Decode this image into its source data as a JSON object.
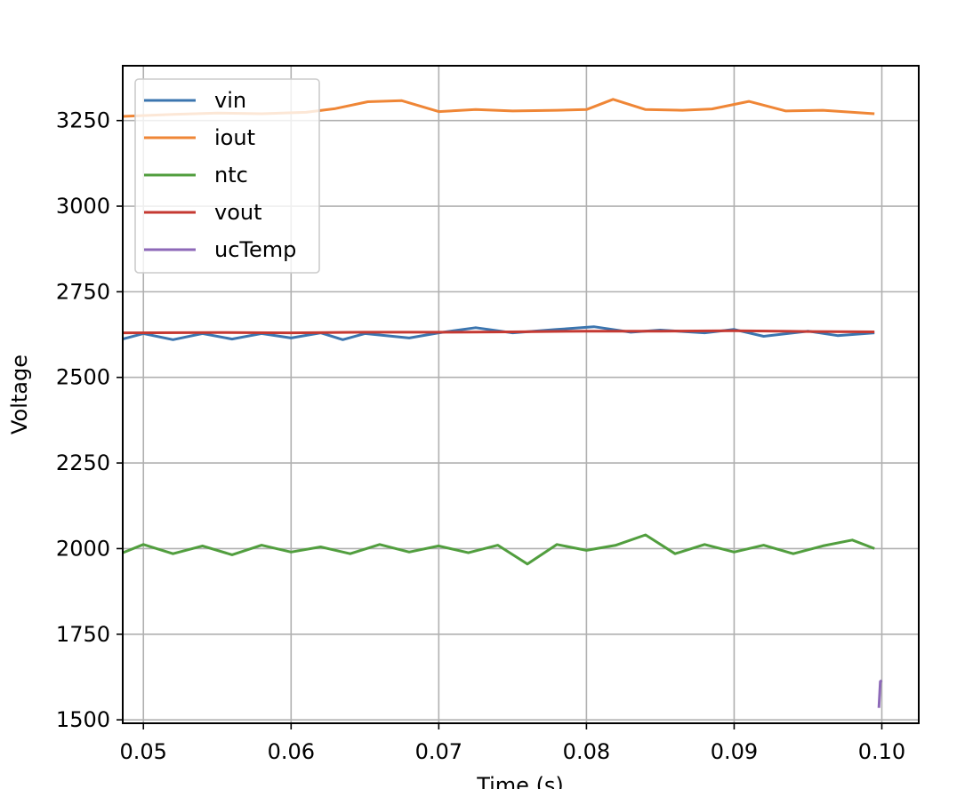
{
  "chart_data": {
    "type": "line",
    "title": "",
    "xlabel": "Time (s)",
    "ylabel": "Voltage",
    "xlim": [
      0.0486,
      0.1025
    ],
    "ylim": [
      1490,
      3410
    ],
    "xticks": [
      0.05,
      0.06,
      0.07,
      0.08,
      0.09,
      0.1
    ],
    "xtick_labels": [
      "0.05",
      "0.06",
      "0.07",
      "0.08",
      "0.09",
      "0.10"
    ],
    "yticks": [
      1500,
      1750,
      2000,
      2250,
      2500,
      2750,
      3000,
      3250
    ],
    "ytick_labels": [
      "1500",
      "1750",
      "2000",
      "2250",
      "2500",
      "2750",
      "3000",
      "3250"
    ],
    "grid": true,
    "legend_position": "upper-left",
    "series": [
      {
        "name": "vin",
        "color": "#3b75af",
        "x": [
          0.0486,
          0.05,
          0.052,
          0.054,
          0.056,
          0.058,
          0.06,
          0.062,
          0.0635,
          0.065,
          0.068,
          0.07,
          0.0725,
          0.075,
          0.078,
          0.0805,
          0.083,
          0.085,
          0.088,
          0.09,
          0.092,
          0.095,
          0.097,
          0.0995
        ],
        "y": [
          2612,
          2628,
          2610,
          2628,
          2612,
          2628,
          2615,
          2630,
          2610,
          2628,
          2615,
          2630,
          2645,
          2630,
          2640,
          2648,
          2632,
          2638,
          2630,
          2640,
          2620,
          2635,
          2622,
          2630
        ]
      },
      {
        "name": "iout",
        "color": "#ef8636",
        "x": [
          0.0486,
          0.052,
          0.055,
          0.058,
          0.061,
          0.063,
          0.0652,
          0.0675,
          0.07,
          0.0725,
          0.075,
          0.078,
          0.08,
          0.0818,
          0.084,
          0.0865,
          0.0885,
          0.091,
          0.0935,
          0.096,
          0.0995
        ],
        "y": [
          3262,
          3268,
          3272,
          3270,
          3274,
          3285,
          3305,
          3308,
          3276,
          3282,
          3278,
          3280,
          3282,
          3312,
          3282,
          3280,
          3284,
          3306,
          3278,
          3280,
          3270
        ]
      },
      {
        "name": "ntc",
        "color": "#519e3e",
        "x": [
          0.0486,
          0.05,
          0.052,
          0.054,
          0.056,
          0.058,
          0.06,
          0.062,
          0.064,
          0.066,
          0.068,
          0.07,
          0.072,
          0.074,
          0.076,
          0.078,
          0.08,
          0.082,
          0.084,
          0.086,
          0.088,
          0.09,
          0.092,
          0.094,
          0.096,
          0.098,
          0.0995
        ],
        "y": [
          1988,
          2012,
          1985,
          2008,
          1982,
          2010,
          1990,
          2005,
          1985,
          2012,
          1990,
          2008,
          1988,
          2010,
          1955,
          2012,
          1995,
          2010,
          2040,
          1985,
          2012,
          1990,
          2010,
          1985,
          2008,
          2025,
          2000
        ]
      },
      {
        "name": "vout",
        "color": "#c53932",
        "x": [
          0.0486,
          0.055,
          0.06,
          0.065,
          0.07,
          0.075,
          0.08,
          0.085,
          0.09,
          0.095,
          0.0995
        ],
        "y": [
          2630,
          2631,
          2630,
          2632,
          2632,
          2633,
          2635,
          2635,
          2636,
          2634,
          2633
        ]
      },
      {
        "name": "ucTemp",
        "color": "#8d69b8",
        "x": [
          0.0998,
          0.0999,
          0.1
        ],
        "y": [
          1535,
          1612,
          1615
        ]
      }
    ]
  }
}
